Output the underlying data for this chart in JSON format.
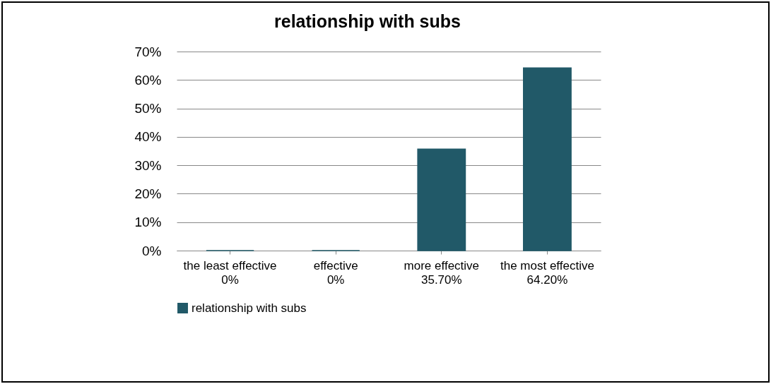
{
  "chart_data": {
    "type": "bar",
    "title": "relationship with subs",
    "categories": [
      "the least effective",
      "effective",
      "more effective",
      "the most effective"
    ],
    "series": [
      {
        "name": "relationship with subs",
        "color": "#215968",
        "values": [
          0,
          0,
          35.7,
          64.2
        ],
        "value_labels": [
          "0%",
          "0%",
          "35.70%",
          "64.20%"
        ]
      }
    ],
    "ylim": [
      0,
      70
    ],
    "yticks": [
      {
        "value": 0,
        "label": "0%"
      },
      {
        "value": 10,
        "label": "10%"
      },
      {
        "value": 20,
        "label": "20%"
      },
      {
        "value": 30,
        "label": "30%"
      },
      {
        "value": 40,
        "label": "40%"
      },
      {
        "value": 50,
        "label": "50%"
      },
      {
        "value": 60,
        "label": "60%"
      },
      {
        "value": 70,
        "label": "70%"
      }
    ],
    "grid": "y",
    "legend": "bottom"
  }
}
